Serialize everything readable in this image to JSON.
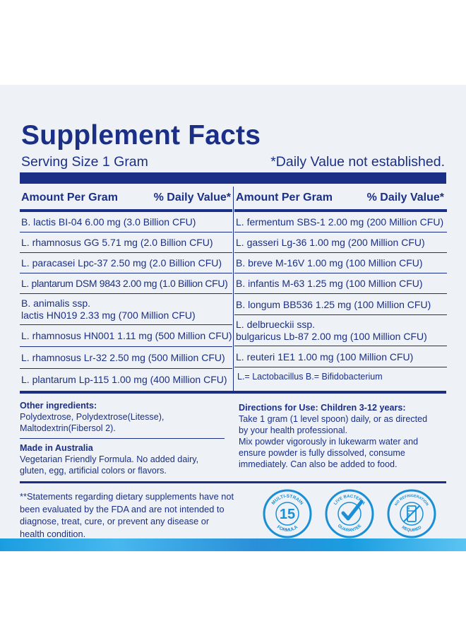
{
  "header": {
    "title": "Supplement Facts",
    "serving_size": "Serving Size 1 Gram",
    "dv_note": "*Daily Value not established."
  },
  "table": {
    "left_headers": {
      "amount": "Amount Per Gram",
      "dv": "% Daily Value*"
    },
    "right_headers": {
      "amount": "Amount Per Gram",
      "dv": "% Daily Value*"
    },
    "left_rows": [
      "B. lactis BI-04 6.00 mg (3.0 Billion CFU)",
      "L. rhamnosus GG 5.71 mg (2.0 Billion CFU)",
      "L. paracasei Lpc-37 2.50 mg (2.0 Billion CFU)",
      "L. plantarum DSM 9843 2.00 mg (1.0 Billion CFU)",
      [
        "B. animalis ssp.",
        "lactis HN019 2.33 mg (700 Million CFU)"
      ],
      "L. rhamnosus HN001 1.11 mg (500 Million CFU)",
      "L. rhamnosus Lr-32 2.50 mg (500 Million CFU)",
      "L. plantarum Lp-115 1.00 mg (400 Million CFU)"
    ],
    "right_rows": [
      "L. fermentum SBS-1 2.00 mg (200 Million CFU)",
      "L. gasseri Lg-36 1.00 mg (200 Million CFU)",
      "B. breve M-16V 1.00 mg (100 Million CFU)",
      "B. infantis M-63 1.25 mg (100 Million CFU)",
      "B. longum BB536 1.25 mg (100 Million CFU)",
      [
        "L. delbrueckii ssp.",
        "bulgaricus Lb-87 2.00 mg (100 Million CFU)"
      ],
      "L. reuteri 1E1 1.00 mg (100 Million CFU)"
    ],
    "legend": "L.= Lactobacillus  B.= Bifidobacterium"
  },
  "other_ingredients": {
    "heading": "Other ingredients:",
    "line1": "Polydextrose, Polydextrose(Litesse),",
    "line2": "Maltodextrin(Fibersol 2)."
  },
  "made_in": {
    "heading": "Made in Australia",
    "line1": "Vegetarian Friendly Formula. No added dairy,",
    "line2": "gluten, egg, artificial colors or flavors."
  },
  "directions": {
    "heading": "Directions for Use: Children 3-12 years:",
    "lines": [
      "Take 1 gram (1 level spoon) daily, or as directed",
      "by your health professional.",
      "Mix powder vigorously in lukewarm water and",
      "ensure powder is fully dissolved, consume",
      "immediately. Can also be added to food."
    ]
  },
  "disclaimer": {
    "lines": [
      "**Statements regarding dietary supplements have not",
      "been evaluated by the FDA and are not intended to",
      "diagnose, treat, cure, or prevent any disease or",
      "health condition."
    ]
  },
  "badges": [
    {
      "name": "multi-strain-badge",
      "top_text": "MULTI-STRAIN",
      "number": "15",
      "bottom_text": "FORMULA"
    },
    {
      "name": "live-bacteria-badge",
      "top_text": "LIVE BACTERIA",
      "bottom_text": "GUARANTEE"
    },
    {
      "name": "no-refrigeration-badge",
      "top_text": "NO REFRIGERATION",
      "bottom_text": "REQUIRED"
    }
  ],
  "colors": {
    "brand_navy": "#1b2f86",
    "badge_blue": "#1b8fd6",
    "panel_bg": "#eef2f6"
  }
}
